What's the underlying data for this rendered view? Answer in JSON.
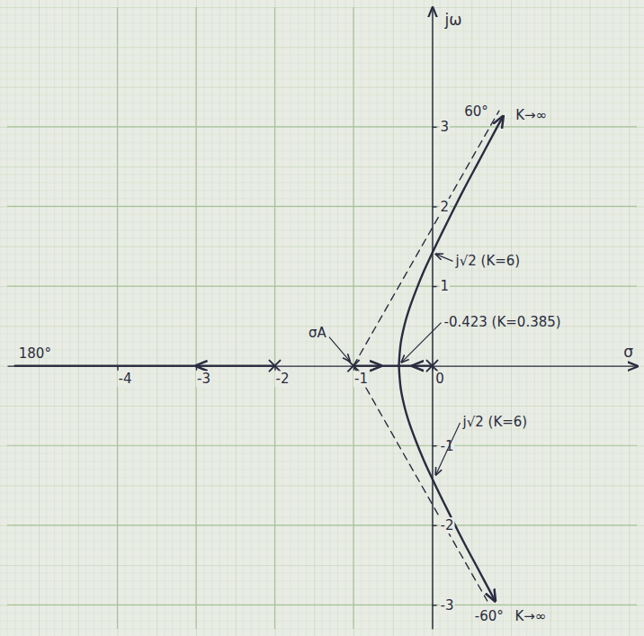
{
  "chart_data": {
    "type": "line",
    "xlabel": "σ",
    "ylabel": "jω",
    "xlim": [
      -5.4,
      2.6
    ],
    "ylim": [
      -3.3,
      4.5
    ],
    "xticks": [
      -4,
      -3,
      -2,
      -1,
      0
    ],
    "yticks": [
      -3,
      -2,
      -1,
      1,
      2,
      3
    ],
    "grid": true,
    "color": "#2a2c40",
    "series": [
      {
        "type": "line",
        "line_style": "solid",
        "marker": "arrow",
        "x": [
          -2,
          -3
        ],
        "values": [
          0,
          0
        ]
      },
      {
        "type": "line",
        "line_style": "solid",
        "x": [
          -3,
          -5.3
        ],
        "values": [
          0,
          0
        ]
      },
      {
        "type": "line",
        "line_style": "solid",
        "marker": "arrow",
        "x": [
          -1,
          -0.65
        ],
        "values": [
          0,
          0
        ]
      },
      {
        "type": "line",
        "line_style": "solid",
        "x": [
          -0.65,
          -0.423
        ],
        "values": [
          0,
          0
        ]
      },
      {
        "type": "line",
        "line_style": "solid",
        "marker": "arrow",
        "x": [
          0,
          -0.25
        ],
        "values": [
          0,
          0
        ]
      },
      {
        "type": "line",
        "line_style": "solid",
        "x": [
          -0.25,
          -0.423
        ],
        "values": [
          0,
          0
        ]
      },
      {
        "type": "line",
        "line_style": "solid",
        "marker": "arrow",
        "x": [
          -0.423,
          -0.4,
          -0.35,
          -0.3,
          -0.2,
          -0.1,
          0,
          0.2,
          0.4,
          0.6,
          0.8,
          0.9
        ],
        "values": [
          0,
          0.28,
          0.52,
          0.69,
          0.96,
          1.2,
          1.414,
          1.82,
          2.21,
          2.58,
          2.95,
          3.13
        ]
      },
      {
        "type": "line",
        "line_style": "solid",
        "marker": "arrow",
        "x": [
          -0.423,
          -0.4,
          -0.35,
          -0.3,
          -0.2,
          -0.1,
          0,
          0.2,
          0.4,
          0.6,
          0.8
        ],
        "values": [
          0,
          -0.28,
          -0.52,
          -0.69,
          -0.96,
          -1.2,
          -1.414,
          -1.82,
          -2.21,
          -2.58,
          -2.95
        ]
      },
      {
        "type": "line",
        "line_style": "dashed",
        "x": [
          -1,
          0.85
        ],
        "values": [
          0,
          3.2
        ]
      },
      {
        "type": "line",
        "line_style": "dashed",
        "x": [
          -1,
          0.7
        ],
        "values": [
          0,
          -2.95
        ]
      },
      {
        "type": "scatter",
        "marker": "x",
        "x": [
          0,
          -1,
          -2
        ],
        "values": [
          0,
          0,
          0
        ]
      }
    ],
    "annotations": [
      {
        "text": "180°",
        "x": -5.3,
        "y": 0
      },
      {
        "text": "σA",
        "x": -1,
        "y": 0
      },
      {
        "text": "-0.423 (K=0.385)",
        "x": -0.423,
        "y": 0
      },
      {
        "text": "j√2 (K=6)",
        "x": 0,
        "y": 1.414
      },
      {
        "text": "j√2 (K=6)",
        "x": 0,
        "y": -1.414
      },
      {
        "text": "60°",
        "x": 0.85,
        "y": 3.2
      },
      {
        "text": "K→∞",
        "x": 0.9,
        "y": 3.13
      },
      {
        "text": "-60°",
        "x": 0.7,
        "y": -2.95
      },
      {
        "text": "K→∞",
        "x": 0.8,
        "y": -2.95
      }
    ]
  }
}
